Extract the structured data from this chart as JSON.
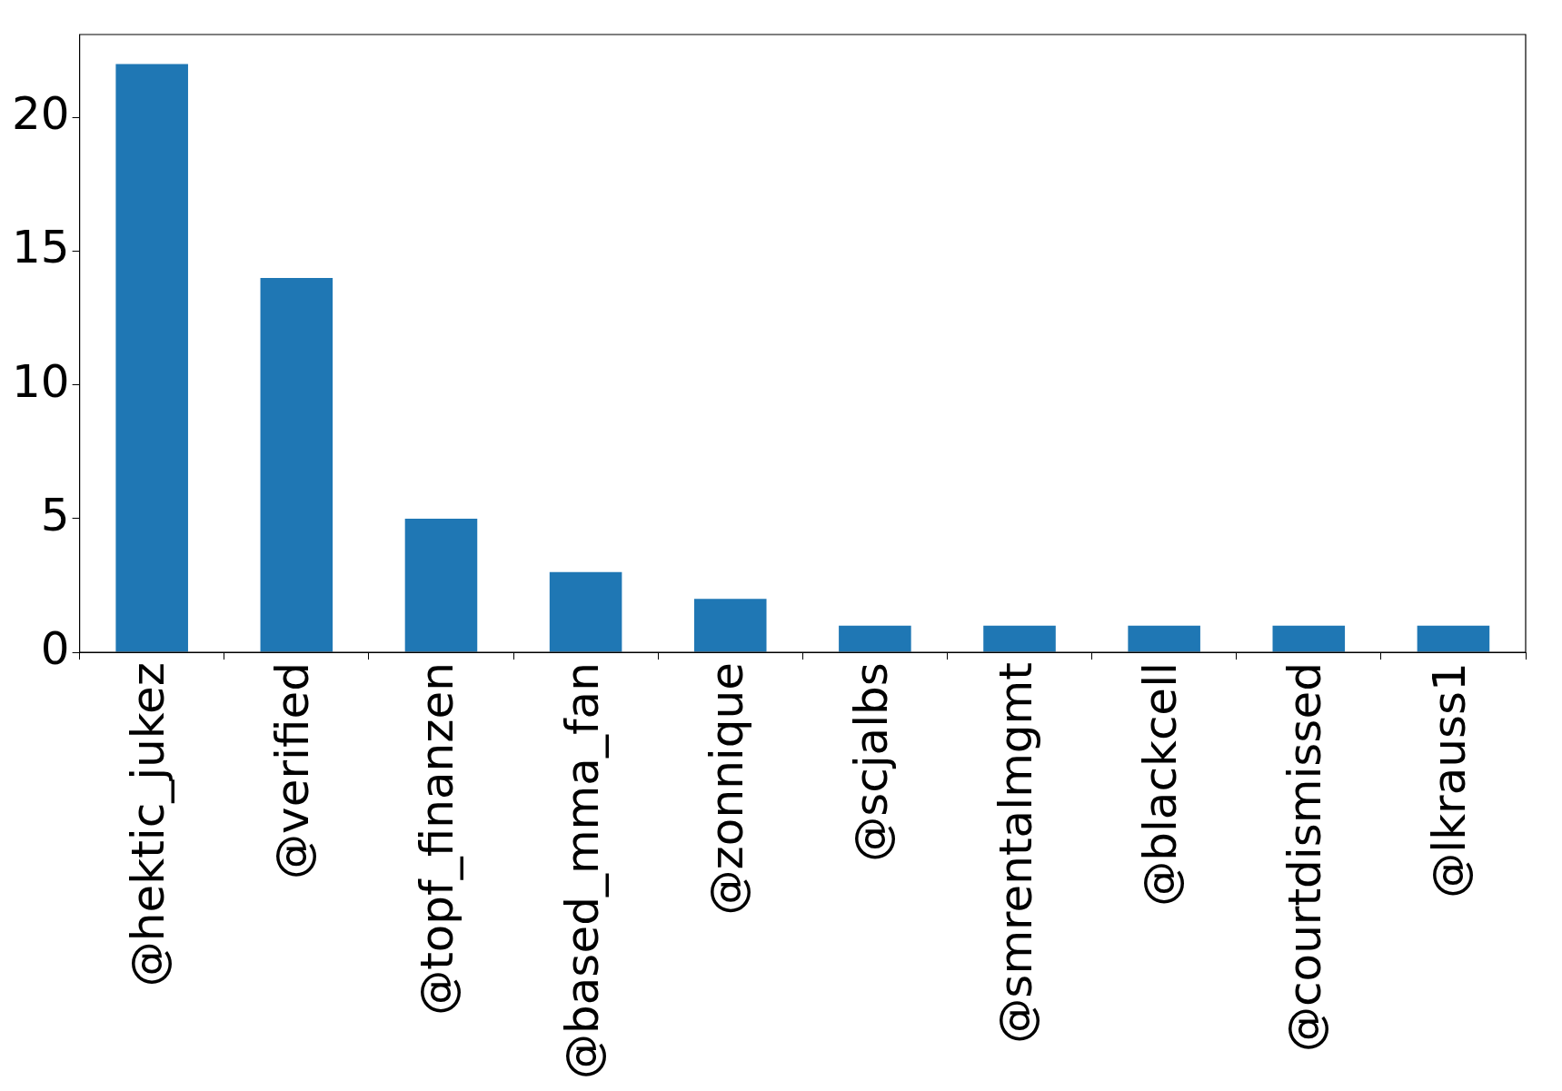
{
  "chart_data": {
    "type": "bar",
    "categories": [
      "@hektic_jukez",
      "@verified",
      "@topf_finanzen",
      "@based_mma_fan",
      "@zonnique",
      "@scjalbs",
      "@smrentalmgmt",
      "@blackcell",
      "@courtdismissed",
      "@lkrauss1"
    ],
    "values": [
      22,
      14,
      5,
      3,
      2,
      1,
      1,
      1,
      1,
      1
    ],
    "color": "#1f77b4",
    "ylim": [
      0,
      23.1
    ],
    "yticks": [
      0,
      5,
      10,
      15,
      20
    ],
    "grid": false,
    "legend": false
  }
}
